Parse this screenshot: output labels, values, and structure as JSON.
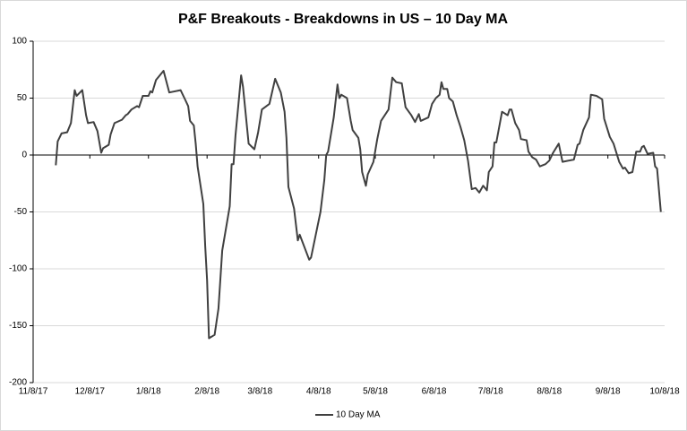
{
  "chart_data": {
    "type": "line",
    "title": "P&F Breakouts - Breakdowns in US – 10 Day MA",
    "x": [
      "11/20/17",
      "11/21/17",
      "11/23/17",
      "11/26/17",
      "11/28/17",
      "11/30/17",
      "12/1/17",
      "12/4/17",
      "12/6/17",
      "12/7/17",
      "12/10/17",
      "12/12/17",
      "12/14/17",
      "12/15/17",
      "12/18/17",
      "12/19/17",
      "12/21/17",
      "12/25/17",
      "12/27/17",
      "12/28/17",
      "12/30/17",
      "1/2/18",
      "1/3/18",
      "1/5/18",
      "1/8/18",
      "1/9/18",
      "1/10/18",
      "1/12/18",
      "1/16/18",
      "1/19/18",
      "1/25/18",
      "1/27/18",
      "1/29/18",
      "1/30/18",
      "2/1/18",
      "2/2/18",
      "2/3/18",
      "2/6/18",
      "2/7/18",
      "2/8/18",
      "2/9/18",
      "2/12/18",
      "2/14/18",
      "2/16/18",
      "2/20/18",
      "2/21/18",
      "2/22/18",
      "2/23/18",
      "2/26/18",
      "2/27/18",
      "3/2/18",
      "3/5/18",
      "3/7/18",
      "3/9/18",
      "3/13/18",
      "3/16/18",
      "3/19/18",
      "3/21/18",
      "3/22/18",
      "3/23/18",
      "3/26/18",
      "3/28/18",
      "3/29/18",
      "4/3/18",
      "4/4/18",
      "4/9/18",
      "4/11/18",
      "4/12/18",
      "4/13/18",
      "4/16/18",
      "4/18/18",
      "4/19/18",
      "4/20/18",
      "4/23/18",
      "4/25/18",
      "4/26/18",
      "4/29/18",
      "4/30/18",
      "5/1/18",
      "5/3/18",
      "5/4/18",
      "5/7/18",
      "5/9/18",
      "5/11/18",
      "5/15/18",
      "5/17/18",
      "5/19/18",
      "5/22/18",
      "5/24/18",
      "5/27/18",
      "5/29/18",
      "5/31/18",
      "6/1/18",
      "6/5/18",
      "6/7/18",
      "6/9/18",
      "6/11/18",
      "6/12/18",
      "6/13/18",
      "6/15/18",
      "6/16/18",
      "6/18/18",
      "6/20/18",
      "6/22/18",
      "6/24/18",
      "6/26/18",
      "6/28/18",
      "6/30/18",
      "7/2/18",
      "7/4/18",
      "7/6/18",
      "7/7/18",
      "7/9/18",
      "7/10/18",
      "7/11/18",
      "7/14/18",
      "7/17/18",
      "7/18/18",
      "7/19/18",
      "7/21/18",
      "7/23/18",
      "7/24/18",
      "7/27/18",
      "7/28/18",
      "7/30/18",
      "8/1/18",
      "8/3/18",
      "8/6/18",
      "8/8/18",
      "8/10/18",
      "8/13/18",
      "8/15/18",
      "8/21/18",
      "8/23/18",
      "8/24/18",
      "8/26/18",
      "8/29/18",
      "8/30/18",
      "9/2/18",
      "9/5/18",
      "9/6/18",
      "9/9/18",
      "9/11/18",
      "9/14/18",
      "9/16/18",
      "9/17/18",
      "9/19/18",
      "9/21/18",
      "9/23/18",
      "9/25/18",
      "9/26/18",
      "9/27/18",
      "9/29/18",
      "10/2/18",
      "10/3/18",
      "10/4/18",
      "10/6/18"
    ],
    "series": [
      {
        "name": "10 Day MA",
        "color": "#404040",
        "values": [
          -9,
          12,
          19,
          20,
          28,
          57,
          52,
          57,
          35,
          28,
          29,
          21,
          2,
          6,
          9,
          18,
          28,
          31,
          35,
          36,
          40,
          43,
          42,
          52,
          52,
          56,
          55,
          66,
          74,
          55,
          57,
          50,
          43,
          30,
          26,
          10,
          -10,
          -43,
          -80,
          -110,
          -161,
          -158,
          -135,
          -84,
          -45,
          -8,
          -8,
          17,
          70,
          60,
          10,
          5,
          20,
          40,
          45,
          67,
          55,
          38,
          15,
          -28,
          -47,
          -75,
          -70,
          -92,
          -90,
          -50,
          -22,
          0,
          3,
          33,
          62,
          50,
          53,
          50,
          30,
          22,
          15,
          5,
          -15,
          -27,
          -17,
          -6,
          14,
          30,
          40,
          68,
          64,
          63,
          42,
          35,
          29,
          36,
          30,
          33,
          45,
          50,
          53,
          64,
          58,
          58,
          50,
          47,
          35,
          25,
          13,
          -5,
          -30,
          -29,
          -33,
          -27,
          -31,
          -15,
          -10,
          11,
          11,
          38,
          35,
          40,
          40,
          28,
          22,
          14,
          13,
          3,
          -2,
          -4,
          -10,
          -8,
          -5,
          2,
          10,
          -6,
          -4,
          9,
          10,
          22,
          33,
          53,
          52,
          49,
          32,
          16,
          10,
          -6,
          -12,
          -11,
          -16,
          -15,
          3,
          3,
          7,
          8,
          1,
          2,
          -10,
          -12,
          -50
        ]
      }
    ],
    "xlim": [
      "11/8/17",
      "10/8/18"
    ],
    "xticks": [
      "11/8/17",
      "12/8/17",
      "1/8/18",
      "2/8/18",
      "3/8/18",
      "4/8/18",
      "5/8/18",
      "6/8/18",
      "7/8/18",
      "8/8/18",
      "9/8/18",
      "10/8/18"
    ],
    "ylim": [
      -200,
      100
    ],
    "yticks": [
      -200,
      -150,
      -100,
      -50,
      0,
      50,
      100
    ],
    "grid": true,
    "legend": "bottom"
  }
}
